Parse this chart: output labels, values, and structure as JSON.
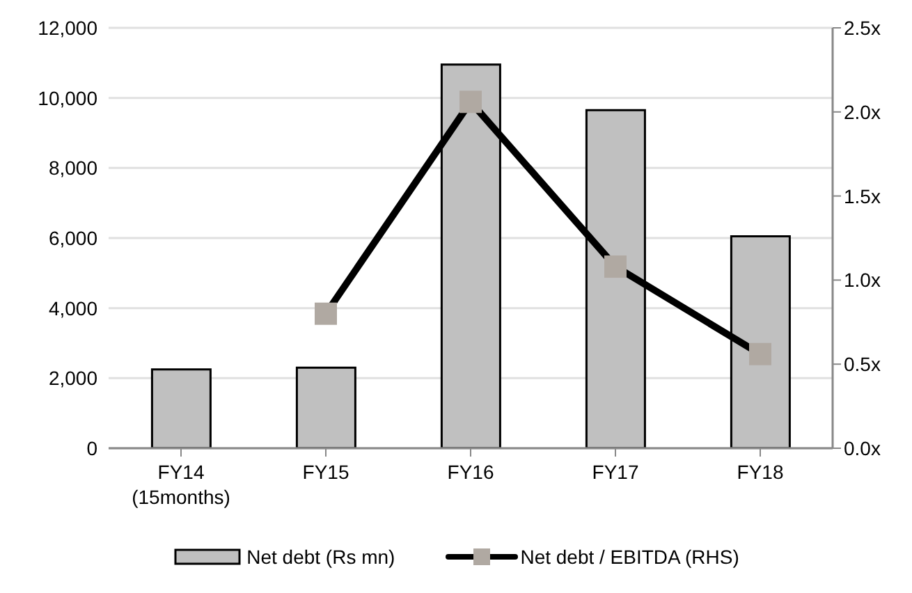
{
  "chart_data": {
    "type": "bar",
    "categories": [
      "FY14\n(15months)",
      "FY15",
      "FY16",
      "FY17",
      "FY18"
    ],
    "series": [
      {
        "name": "Net debt (Rs mn)",
        "color": "#c0c0c0",
        "values": [
          2250,
          2300,
          10950,
          9650,
          6050
        ]
      },
      {
        "name": "Net debt / EBITDA (RHS)",
        "type": "line",
        "axis": "y2",
        "color": "#000000",
        "colors": [
          null,
          "#b0a9a2",
          "#b0a9a2",
          "#b0a9a2",
          "#b0a9a2"
        ],
        "values": [
          null,
          0.8,
          2.06,
          1.08,
          0.56
        ]
      }
    ],
    "ylim": [
      0,
      12000
    ],
    "yticks": [
      0,
      {
        "value": 2000,
        "label": "2,000"
      },
      {
        "value": 4000,
        "label": "4,000"
      },
      {
        "value": 6000,
        "label": "6,000"
      },
      {
        "value": 8000,
        "label": "8,000"
      },
      {
        "value": 10000,
        "label": "10,000"
      },
      {
        "value": 12000,
        "label": "12,000"
      }
    ],
    "y2lim": [
      0,
      2.5
    ],
    "y2ticks": [
      {
        "value": 0,
        "label": "0.0x"
      },
      {
        "value": 0.5,
        "label": "0.5x"
      },
      {
        "value": 1,
        "label": "1.0x"
      },
      {
        "value": 1.5,
        "label": "1.5x"
      },
      {
        "value": 2,
        "label": "2.0x"
      },
      {
        "value": 2.5,
        "label": "2.5x"
      }
    ],
    "grid": "y",
    "legend": "bottom",
    "marker": "square"
  }
}
